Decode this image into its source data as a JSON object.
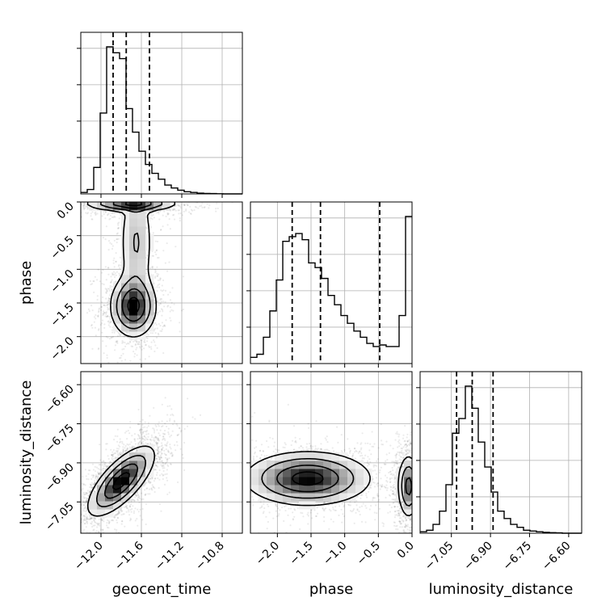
{
  "chart_data": {
    "type": "corner",
    "grid": true,
    "parameters": [
      {
        "name": "geocent_time",
        "label": "geocent_time",
        "range": [
          -12.2,
          -10.6
        ],
        "ticks": [
          -12.0,
          -11.6,
          -11.2,
          -10.8
        ],
        "tick_labels": [
          "−12.0",
          "−11.6",
          "−11.2",
          "−10.8"
        ],
        "quantiles": [
          -11.88,
          -11.75,
          -11.52
        ],
        "histogram": {
          "bin_start": -12.2,
          "bin_width": 0.064,
          "counts": [
            0.01,
            0.03,
            0.18,
            0.55,
            1.0,
            0.96,
            0.92,
            0.58,
            0.42,
            0.29,
            0.2,
            0.14,
            0.1,
            0.06,
            0.04,
            0.025,
            0.015,
            0.01,
            0.005,
            0.003,
            0.002,
            0.001,
            0.0,
            0.0,
            0.0
          ]
        }
      },
      {
        "name": "phase",
        "label": "phase",
        "range": [
          -2.4,
          0.0
        ],
        "ticks": [
          -2.0,
          -1.5,
          -1.0,
          -0.5,
          0.0
        ],
        "tick_labels": [
          "−2.0",
          "−1.5",
          "−1.0",
          "−0.5",
          "0.0"
        ],
        "quantiles": [
          -1.78,
          -1.36,
          -0.48
        ],
        "histogram": {
          "bin_start": -2.4,
          "bin_width": 0.096,
          "counts": [
            0.04,
            0.06,
            0.17,
            0.34,
            0.54,
            0.79,
            0.82,
            0.84,
            0.8,
            0.65,
            0.62,
            0.55,
            0.44,
            0.38,
            0.31,
            0.26,
            0.21,
            0.17,
            0.13,
            0.11,
            0.12,
            0.11,
            0.11,
            0.31,
            0.95
          ]
        }
      },
      {
        "name": "luminosity_distance",
        "label": "luminosity_distance",
        "range": [
          -7.17,
          -6.55
        ],
        "ticks": [
          -7.05,
          -6.9,
          -6.75,
          -6.6
        ],
        "tick_labels": [
          "−7.05",
          "−6.90",
          "−6.75",
          "−6.60"
        ],
        "quantiles": [
          -7.03,
          -6.97,
          -6.89
        ],
        "histogram": {
          "bin_start": -7.17,
          "bin_width": 0.0248,
          "counts": [
            0.01,
            0.02,
            0.06,
            0.15,
            0.33,
            0.68,
            0.78,
            1.0,
            0.85,
            0.62,
            0.45,
            0.28,
            0.15,
            0.1,
            0.06,
            0.04,
            0.02,
            0.015,
            0.01,
            0.006,
            0.004,
            0.002,
            0.0,
            0.0,
            0.0
          ]
        }
      }
    ],
    "pairs": [
      {
        "x": "geocent_time",
        "y": "phase",
        "blobs": [
          {
            "cx": -11.68,
            "cy": -1.55,
            "sx": 0.11,
            "sy": 0.22,
            "rho": 0.0,
            "weight": 1.0
          },
          {
            "cx": -11.65,
            "cy": -0.6,
            "sx": 0.09,
            "sy": 0.5,
            "rho": 0.0,
            "weight": 0.35
          },
          {
            "cx": -11.7,
            "cy": -0.02,
            "sx": 0.22,
            "sy": 0.06,
            "rho": 0.0,
            "weight": 0.9
          }
        ]
      },
      {
        "x": "geocent_time",
        "y": "luminosity_distance",
        "blobs": [
          {
            "cx": -11.8,
            "cy": -6.97,
            "sx": 0.16,
            "sy": 0.065,
            "rho": 0.72,
            "weight": 1.0
          }
        ]
      },
      {
        "x": "phase",
        "y": "luminosity_distance",
        "blobs": [
          {
            "cx": -1.55,
            "cy": -6.96,
            "sx": 0.45,
            "sy": 0.05,
            "rho": 0.0,
            "weight": 1.0
          },
          {
            "cx": -0.05,
            "cy": -6.99,
            "sx": 0.08,
            "sy": 0.06,
            "rho": 0.0,
            "weight": 0.7
          }
        ]
      }
    ]
  }
}
